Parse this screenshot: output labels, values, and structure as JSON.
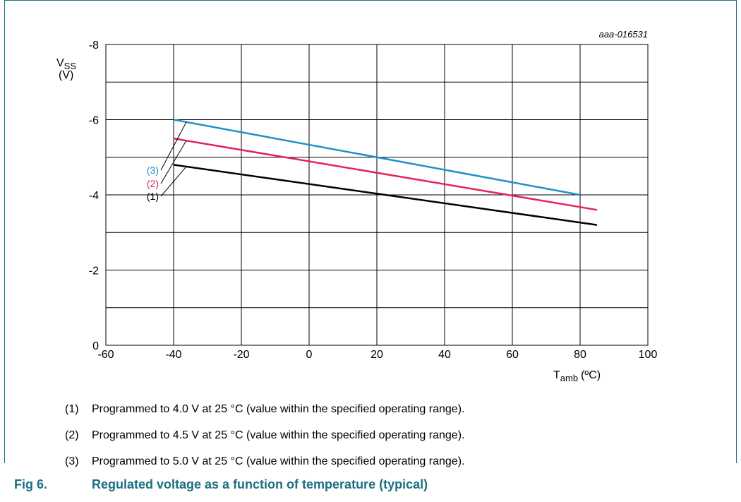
{
  "chart_data": {
    "type": "line",
    "id_label": "aaa-016531",
    "ylabel_main": "V",
    "ylabel_sub": "SS",
    "ylabel_unit": "(V)",
    "xlabel_main": "T",
    "xlabel_sub": "amb",
    "xlabel_unit": "(ºC)",
    "xlim": [
      -60,
      100
    ],
    "ylim": [
      0,
      -8
    ],
    "x_ticks": [
      -60,
      -40,
      -20,
      0,
      20,
      40,
      60,
      80,
      100
    ],
    "y_ticks": [
      0,
      -2,
      -4,
      -6,
      -8
    ],
    "y_minor_step": 1,
    "grid": true,
    "series": [
      {
        "name": "(1)",
        "color": "#000000",
        "x": [
          -40,
          85
        ],
        "y": [
          -4.8,
          -3.2
        ]
      },
      {
        "name": "(2)",
        "color": "#e0245e",
        "x": [
          -40,
          85
        ],
        "y": [
          -5.5,
          -3.6
        ]
      },
      {
        "name": "(3)",
        "color": "#1f8fc8",
        "x": [
          -40,
          80
        ],
        "y": [
          -6.0,
          -4.0
        ]
      }
    ]
  },
  "notes": [
    {
      "num": "(1)",
      "text": "Programmed to 4.0 V at 25 °C (value within the specified operating range)."
    },
    {
      "num": "(2)",
      "text": "Programmed to 4.5 V at 25 °C (value within the specified operating range)."
    },
    {
      "num": "(3)",
      "text": "Programmed to 5.0 V at 25 °C (value within the specified operating range)."
    }
  ],
  "caption": {
    "fig": "Fig 6.",
    "text": "Regulated voltage as a function of temperature (typical)"
  },
  "colors": {
    "accent": "#1b6f80",
    "grid": "#000000"
  }
}
